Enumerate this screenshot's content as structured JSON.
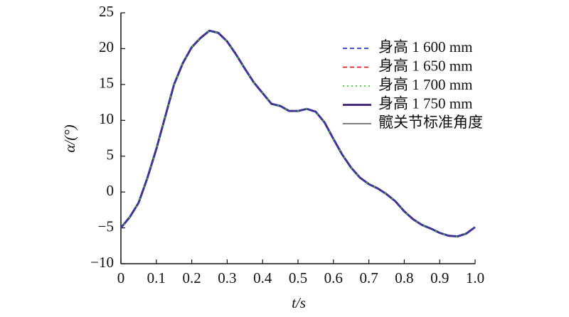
{
  "chart_data": {
    "type": "line",
    "xlabel": "t/s",
    "ylabel": "α/(°)",
    "x": [
      0,
      0.025,
      0.05,
      0.075,
      0.1,
      0.125,
      0.15,
      0.175,
      0.2,
      0.225,
      0.25,
      0.275,
      0.3,
      0.325,
      0.35,
      0.375,
      0.4,
      0.425,
      0.45,
      0.475,
      0.5,
      0.525,
      0.55,
      0.575,
      0.6,
      0.625,
      0.65,
      0.675,
      0.7,
      0.725,
      0.75,
      0.775,
      0.8,
      0.825,
      0.85,
      0.875,
      0.9,
      0.925,
      0.95,
      0.975,
      1.0
    ],
    "series": [
      {
        "name": "身高 1 600 mm",
        "color": "#1f3fbf",
        "style": "dashed",
        "width": 1.8,
        "values": [
          -5,
          -3.5,
          -1.5,
          2,
          6,
          10.5,
          15,
          18,
          20.2,
          21.5,
          22.5,
          22.2,
          21,
          19.2,
          17.2,
          15.3,
          13.8,
          12.3,
          12,
          11.3,
          11.3,
          11.6,
          11.2,
          9.7,
          7.4,
          5.2,
          3.4,
          2,
          1.1,
          0.5,
          -0.3,
          -1.3,
          -2.7,
          -3.8,
          -4.6,
          -5.1,
          -5.7,
          -6.1,
          -6.2,
          -5.8,
          -4.9
        ]
      },
      {
        "name": "身高 1 650 mm",
        "color": "#e02020",
        "style": "dashed",
        "width": 1.8,
        "values": [
          -5,
          -3.5,
          -1.5,
          2,
          6,
          10.5,
          15,
          18,
          20.2,
          21.5,
          22.5,
          22.2,
          21,
          19.2,
          17.2,
          15.3,
          13.8,
          12.3,
          12,
          11.3,
          11.3,
          11.6,
          11.2,
          9.7,
          7.4,
          5.2,
          3.4,
          2,
          1.1,
          0.5,
          -0.3,
          -1.3,
          -2.7,
          -3.8,
          -4.6,
          -5.1,
          -5.7,
          -6.1,
          -6.2,
          -5.8,
          -4.9
        ]
      },
      {
        "name": "身高 1 700 mm",
        "color": "#3ccc2c",
        "style": "dotted",
        "width": 1.8,
        "values": [
          -5,
          -3.5,
          -1.5,
          2,
          6,
          10.5,
          15,
          18,
          20.2,
          21.5,
          22.5,
          22.2,
          21,
          19.2,
          17.2,
          15.3,
          13.8,
          12.3,
          12,
          11.3,
          11.3,
          11.6,
          11.2,
          9.7,
          7.4,
          5.2,
          3.4,
          2,
          1.1,
          0.5,
          -0.3,
          -1.3,
          -2.7,
          -3.8,
          -4.6,
          -5.1,
          -5.7,
          -6.1,
          -6.2,
          -5.8,
          -4.9
        ]
      },
      {
        "name": "身高 1 750 mm",
        "color": "#4b2a7a",
        "style": "solid",
        "width": 3,
        "values": [
          -5,
          -3.5,
          -1.5,
          2,
          6,
          10.5,
          15,
          18,
          20.2,
          21.5,
          22.5,
          22.2,
          21,
          19.2,
          17.2,
          15.3,
          13.8,
          12.3,
          12,
          11.3,
          11.3,
          11.6,
          11.2,
          9.7,
          7.4,
          5.2,
          3.4,
          2,
          1.1,
          0.5,
          -0.3,
          -1.3,
          -2.7,
          -3.8,
          -4.6,
          -5.1,
          -5.7,
          -6.1,
          -6.2,
          -5.8,
          -4.9
        ]
      },
      {
        "name": "髋关节标准角度",
        "color": "#000000",
        "style": "solid",
        "width": 1,
        "values": [
          -5,
          -3.5,
          -1.5,
          2,
          6,
          10.5,
          15,
          18,
          20.2,
          21.5,
          22.5,
          22.2,
          21,
          19.2,
          17.2,
          15.3,
          13.8,
          12.3,
          12,
          11.3,
          11.3,
          11.6,
          11.2,
          9.7,
          7.4,
          5.2,
          3.4,
          2,
          1.1,
          0.5,
          -0.3,
          -1.3,
          -2.7,
          -3.8,
          -4.6,
          -5.1,
          -5.7,
          -6.1,
          -6.2,
          -5.8,
          -4.9
        ]
      }
    ],
    "xlim": [
      0,
      1
    ],
    "xticks": [
      0,
      0.1,
      0.2,
      0.3,
      0.4,
      0.5,
      0.6,
      0.7,
      0.8,
      0.9,
      {
        "value": 1,
        "label": "1.0"
      }
    ],
    "ylim": [
      -10,
      25
    ],
    "yticks": [
      {
        "value": -10,
        "label": "−10"
      },
      {
        "value": -5,
        "label": "−5"
      },
      0,
      5,
      10,
      15,
      20,
      25
    ],
    "legend": "upper right"
  }
}
